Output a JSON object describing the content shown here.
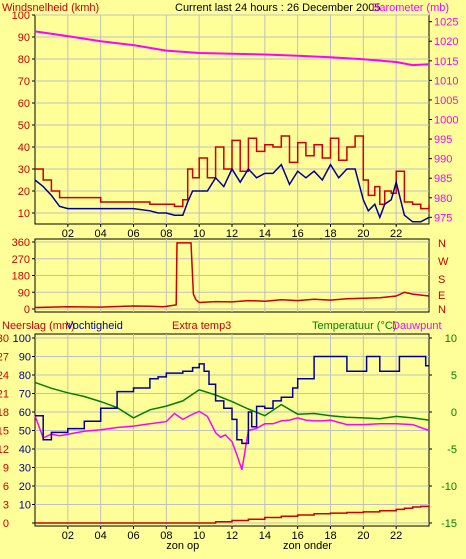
{
  "header": {
    "title": "Current last 24 hours : 26 December 2005"
  },
  "colors": {
    "background": "#ffff99",
    "wind_gust": "#cc0000",
    "wind_avg": "#000099",
    "barometer": "#ff00ff",
    "direction": "#cc0000",
    "rain": "#cc0000",
    "humidity": "#000099",
    "extra_temp": "#cc0000",
    "temperature": "#008000",
    "dewpoint": "#ff00ff",
    "grid": "#c0c0c0",
    "axis_left": "#cc0000",
    "axis_right_top": "#ff00ff",
    "axis_right_bottom": "#008000"
  },
  "chart_data": [
    {
      "type": "line",
      "left_axis_label": "Windsnelheid (kmh)",
      "right_axis_label": "Barometer (mb)",
      "y_left": {
        "ticks": [
          10,
          20,
          30,
          40,
          50,
          60,
          70,
          80,
          90,
          100
        ]
      },
      "y_right": {
        "ticks": [
          975,
          980,
          985,
          990,
          995,
          1000,
          1005,
          1010,
          1015,
          1020,
          1025
        ]
      },
      "x_ticks": [
        "02",
        "04",
        "06",
        "08",
        "10",
        "12",
        "14",
        "16",
        "18",
        "20",
        "22"
      ],
      "x_annotations": [
        {
          "text": "zon op",
          "hour": 9
        },
        {
          "text": "zon onder",
          "hour": 16.6
        }
      ],
      "series": [
        {
          "key": "gust",
          "x": [
            0,
            0.5,
            1,
            1.5,
            2,
            3,
            4,
            5,
            6,
            7,
            7.5,
            8,
            8.5,
            9,
            9.3,
            9.6,
            10,
            10.5,
            11,
            11.5,
            12,
            12.5,
            13,
            13.5,
            14,
            14.5,
            15,
            15.5,
            16,
            16.5,
            17,
            17.5,
            18,
            18.5,
            19,
            19.5,
            20,
            20.3,
            20.7,
            21,
            21.3,
            21.7,
            22,
            22.5,
            23,
            23.5,
            24
          ],
          "values": [
            30,
            25,
            20,
            17,
            17,
            17,
            15,
            15,
            15,
            14,
            14,
            14,
            13,
            16,
            30,
            26,
            35,
            26,
            40,
            30,
            43,
            29,
            44,
            38,
            41,
            40,
            45,
            33,
            42,
            36,
            41,
            35,
            44,
            34,
            40,
            45,
            25,
            18,
            22,
            14,
            20,
            19,
            29,
            15,
            14,
            12,
            14
          ]
        },
        {
          "key": "average",
          "x": [
            0,
            0.5,
            1,
            1.5,
            2,
            3,
            4,
            5,
            6,
            7,
            7.5,
            8,
            8.5,
            9,
            9.3,
            9.6,
            10,
            10.5,
            11,
            11.5,
            12,
            12.5,
            13,
            13.5,
            14,
            14.5,
            15,
            15.5,
            16,
            16.5,
            17,
            17.5,
            18,
            18.5,
            19,
            19.5,
            20,
            20.3,
            20.7,
            21,
            21.3,
            21.7,
            22,
            22.5,
            23,
            23.5,
            24
          ],
          "values": [
            25,
            22,
            18,
            13,
            12,
            12,
            12,
            12,
            12,
            11,
            10,
            10,
            9,
            9,
            15,
            20,
            20,
            20,
            26,
            22,
            30,
            24,
            30,
            26,
            28,
            28,
            32,
            23,
            29,
            26,
            29,
            25,
            32,
            26,
            30,
            30,
            16,
            11,
            14,
            8,
            14,
            16,
            24,
            9,
            6,
            6,
            8
          ]
        },
        {
          "key": "barometer",
          "axis": "right",
          "x": [
            0,
            2,
            4,
            6,
            8,
            10,
            12,
            14,
            16,
            18,
            20,
            22,
            23,
            24
          ],
          "values": [
            1022.5,
            1021.3,
            1020.0,
            1019.0,
            1017.6,
            1017.0,
            1016.8,
            1016.6,
            1016.3,
            1015.9,
            1015.4,
            1014.7,
            1013.9,
            1014.1
          ]
        }
      ]
    },
    {
      "type": "line",
      "y_left": {
        "ticks": [
          0,
          90,
          180,
          270,
          360
        ]
      },
      "y_right_labels": [
        "N",
        "W",
        "S",
        "E",
        "N"
      ],
      "series": [
        {
          "key": "direction",
          "x": [
            0,
            2,
            4,
            6,
            7,
            7.8,
            8,
            8.3,
            8.6,
            8.65,
            9.5,
            9.65,
            9.8,
            10,
            11,
            12,
            13,
            14,
            15,
            16,
            17,
            18,
            19,
            20,
            21,
            22,
            22.5,
            23,
            24
          ],
          "values": [
            8,
            12,
            10,
            16,
            15,
            12,
            14,
            18,
            22,
            355,
            355,
            80,
            50,
            35,
            40,
            38,
            45,
            42,
            50,
            45,
            52,
            48,
            55,
            58,
            60,
            70,
            90,
            80,
            70
          ]
        }
      ]
    },
    {
      "type": "line",
      "left_axis_label_1": "Neerslag (mm)",
      "left_axis_label_2": "Vochtigheid",
      "center_label": "Extra temp3",
      "right_axis_label_1": "Temperatuur (°C)",
      "right_axis_label_2": "Dauwpunt",
      "y_left_rain": [
        "0",
        "3",
        "6",
        "9",
        "12",
        "15",
        "18",
        "21",
        "24",
        "27",
        "30"
      ],
      "y_left_humidity": [
        "10",
        "20",
        "30",
        "40",
        "50",
        "60",
        "70",
        "80",
        "90",
        "100"
      ],
      "y_right": {
        "ticks": [
          -15,
          -10,
          -5,
          0,
          5,
          10
        ]
      },
      "x_ticks": [
        "02",
        "04",
        "06",
        "08",
        "10",
        "12",
        "14",
        "16",
        "18",
        "20",
        "22"
      ],
      "x_annotations": [
        {
          "text": "zon op",
          "hour": 9
        },
        {
          "text": "zon onder",
          "hour": 16.6
        }
      ],
      "series": [
        {
          "key": "temperature",
          "axis": "right",
          "x": [
            0,
            1,
            2,
            3,
            4,
            5,
            6,
            7,
            8,
            9,
            10,
            11,
            12,
            13,
            14,
            15,
            16,
            17,
            18,
            19,
            20,
            21,
            22,
            23,
            24
          ],
          "values": [
            4,
            3.2,
            2.6,
            2.1,
            1.4,
            0.6,
            -0.8,
            0.3,
            0.8,
            1.5,
            3.0,
            2.3,
            1.4,
            0.4,
            -0.5,
            1.0,
            -0.3,
            -0.2,
            -0.5,
            -0.7,
            -0.8,
            -0.9,
            -0.6,
            -0.8,
            -1.1
          ]
        },
        {
          "key": "dewpoint",
          "axis": "right",
          "x": [
            0,
            0.5,
            1,
            1.5,
            2,
            3,
            4,
            5,
            6,
            7,
            8,
            8.5,
            9,
            9.5,
            10,
            10.5,
            11,
            11.3,
            11.6,
            12,
            12.3,
            12.6,
            13,
            13.5,
            14,
            14.5,
            15,
            15.5,
            16,
            16.5,
            17,
            17.5,
            18,
            19,
            20,
            21,
            22,
            23,
            24
          ],
          "values": [
            -0.5,
            -3.5,
            -3.0,
            -3.2,
            -3.0,
            -2.6,
            -2.4,
            -2.1,
            -1.9,
            -1.6,
            -1.3,
            -0.2,
            -1.0,
            -0.4,
            0.1,
            -0.6,
            -2.8,
            -3.4,
            -3.1,
            -4.0,
            -5.8,
            -7.8,
            -2.5,
            -2.2,
            -1.6,
            -1.6,
            -1.2,
            -1.1,
            -0.8,
            -1.1,
            -1.2,
            -1.2,
            -1.1,
            -1.7,
            -1.7,
            -1.6,
            -1.6,
            -1.7,
            -2.5
          ]
        },
        {
          "key": "humidity",
          "axis": "humidity",
          "x": [
            0,
            0.5,
            1,
            2,
            3,
            4,
            5,
            6,
            7,
            7.5,
            8,
            9,
            9.6,
            10,
            10.3,
            10.6,
            11,
            11.5,
            12,
            12.3,
            12.6,
            13,
            13.2,
            13.5,
            14,
            14.5,
            15,
            15.5,
            15.7,
            16,
            17,
            18,
            18.5,
            19,
            20,
            20.2,
            20.8,
            21,
            22,
            22.2,
            23,
            23.8,
            24
          ],
          "values": [
            58,
            45,
            49,
            51,
            55,
            62,
            71,
            73,
            78,
            79,
            81,
            82,
            84,
            86,
            82,
            75,
            66,
            62,
            56,
            45,
            43,
            60,
            52,
            63,
            62,
            66,
            68,
            68,
            73,
            78,
            90,
            90,
            90,
            82,
            82,
            90,
            90,
            82,
            82,
            90,
            90,
            85,
            85
          ]
        },
        {
          "key": "rain",
          "axis": "rain",
          "x": [
            0,
            10,
            11,
            12,
            13,
            14,
            15,
            16,
            17,
            18,
            19,
            20,
            21,
            22,
            22.5,
            23,
            23.5,
            24
          ],
          "values": [
            0,
            0,
            0.2,
            0.4,
            0.6,
            0.9,
            1.1,
            1.3,
            1.5,
            1.6,
            1.7,
            1.8,
            2.0,
            2.2,
            2.4,
            2.6,
            2.7,
            2.8
          ]
        },
        {
          "key": "extra_temp",
          "axis": "right",
          "x": [
            0,
            24
          ],
          "values": [
            -15,
            -15
          ]
        }
      ]
    }
  ]
}
